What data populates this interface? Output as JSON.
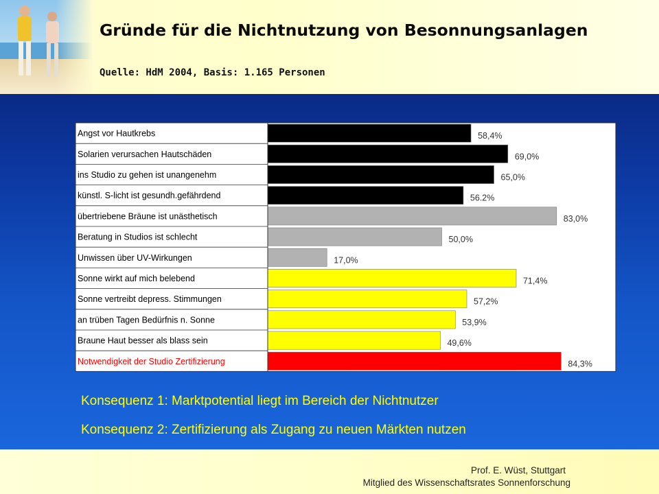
{
  "header": {
    "title": "Gründe für die Nichtnutzung von Besonnungsanlagen",
    "subtitle": "Quelle: HdM 2004, Basis: 1.165 Personen"
  },
  "chart_data": {
    "type": "bar",
    "orientation": "horizontal",
    "categories": [
      "Angst vor Hautkrebs",
      "Solarien verursachen Hautschäden",
      "ins Studio zu gehen ist unangenehm",
      "künstl. S-licht ist gesundh.gefährdend",
      "übertriebene Bräune ist unästhetisch",
      "Beratung in Studios ist schlecht",
      "Unwissen über UV-Wirkungen",
      "Sonne wirkt auf mich belebend",
      "Sonne vertreibt depress. Stimmungen",
      "an trüben Tagen Bedürfnis n. Sonne",
      "Braune Haut besser als blass sein",
      "Notwendigkeit der Studio Zertifizierung"
    ],
    "values": [
      58.4,
      69.0,
      65.0,
      56.2,
      83.0,
      50.0,
      17.0,
      71.4,
      57.2,
      53.9,
      49.6,
      84.3
    ],
    "value_labels": [
      "58,4%",
      "69,0%",
      "65,0%",
      "56.2%",
      "83,0%",
      "50,0%",
      "17,0%",
      "71,4%",
      "57,2%",
      "53,9%",
      "49,6%",
      "84,3%"
    ],
    "bar_colors": [
      "#000000",
      "#000000",
      "#000000",
      "#000000",
      "#b2b2b2",
      "#b2b2b2",
      "#b2b2b2",
      "#ffff00",
      "#ffff00",
      "#ffff00",
      "#ffff00",
      "#ff0000"
    ],
    "label_colors": [
      "#000000",
      "#000000",
      "#000000",
      "#000000",
      "#000000",
      "#000000",
      "#000000",
      "#000000",
      "#000000",
      "#000000",
      "#000000",
      "#ff0000"
    ],
    "xlim": [
      0,
      100
    ],
    "grid": false
  },
  "consequences": {
    "k1": "Konsequenz 1: Marktpotential liegt im Bereich der Nichtnutzer",
    "k2": "Konsequenz 2: Zertifizierung als Zugang zu neuen Märkten nutzen"
  },
  "footer": {
    "author": "Prof. E. Wüst, Stuttgart",
    "affiliation": "Mitglied des Wissenschaftsrates Sonnenforschung"
  }
}
